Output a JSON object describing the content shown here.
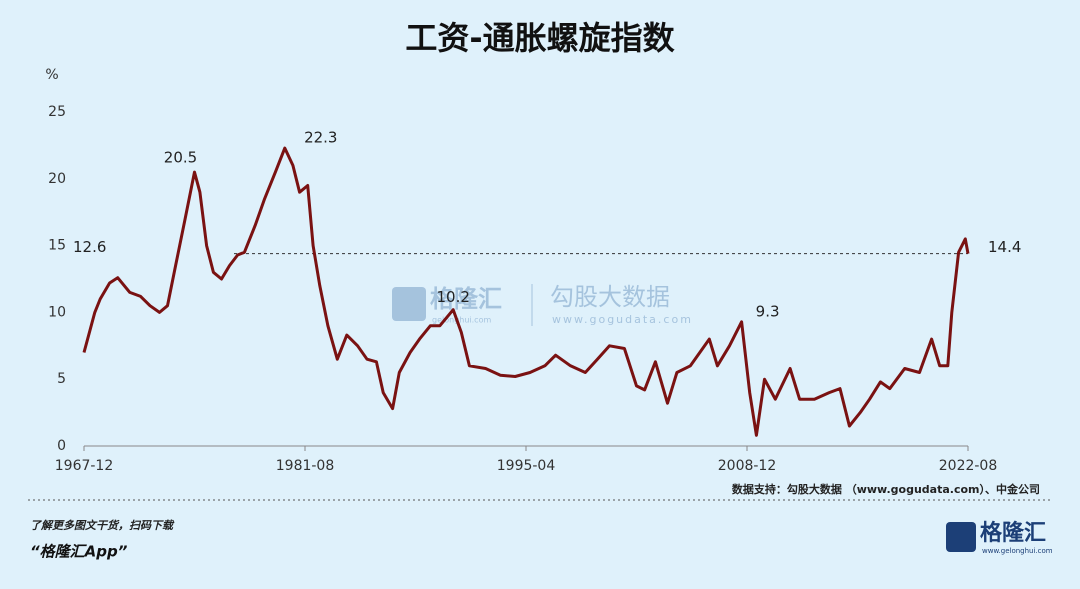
{
  "chart_data": {
    "type": "line",
    "title": "工资-通胀螺旋指数",
    "y_unit": "%",
    "x": [
      "1967-12",
      "1968-08",
      "1968-12",
      "1969-07",
      "1970-01",
      "1970-10",
      "1971-06",
      "1972-01",
      "1972-08",
      "1973-02",
      "1973-08",
      "1974-03",
      "1974-10",
      "1975-02",
      "1975-07",
      "1975-12",
      "1976-06",
      "1976-12",
      "1977-06",
      "1977-11",
      "1978-07",
      "1979-02",
      "1979-10",
      "1980-05",
      "1980-11",
      "1981-04",
      "1981-10",
      "1982-02",
      "1982-07",
      "1983-01",
      "1983-08",
      "1984-03",
      "1984-11",
      "1985-06",
      "1986-01",
      "1986-06",
      "1987-01",
      "1987-06",
      "1988-02",
      "1988-09",
      "1989-05",
      "1989-12",
      "1990-10",
      "1991-04",
      "1991-10",
      "1992-10",
      "1993-09",
      "1994-08",
      "1995-07",
      "1996-06",
      "1997-02",
      "1998-01",
      "1998-12",
      "1999-09",
      "2000-06",
      "2001-05",
      "2002-02",
      "2002-08",
      "2003-04",
      "2004-01",
      "2004-08",
      "2005-06",
      "2006-01",
      "2006-08",
      "2007-02",
      "2007-11",
      "2008-08",
      "2009-02",
      "2009-07",
      "2010-01",
      "2010-09",
      "2011-08",
      "2012-03",
      "2013-02",
      "2014-01",
      "2014-09",
      "2015-04",
      "2015-12",
      "2016-07",
      "2017-03",
      "2017-10",
      "2018-09",
      "2019-08",
      "2020-05",
      "2020-11",
      "2021-05",
      "2021-08",
      "2022-01",
      "2022-06",
      "2022-08"
    ],
    "series": [
      {
        "name": "工资-通胀螺旋指数",
        "color": "#7a1212",
        "values": [
          7,
          10,
          11,
          12.2,
          12.6,
          11.5,
          11.2,
          10.5,
          10,
          10.5,
          13.5,
          17,
          20.5,
          19,
          15,
          13,
          12.5,
          13.5,
          14.3,
          14.5,
          16.5,
          18.5,
          20.5,
          22.3,
          21,
          19,
          19.5,
          15,
          12,
          9,
          6.5,
          8.3,
          7.5,
          6.5,
          6.3,
          4,
          2.8,
          5.5,
          7,
          8,
          9,
          9,
          10.2,
          8.5,
          6,
          5.8,
          5.3,
          5.2,
          5.5,
          6,
          6.8,
          6,
          5.5,
          6.5,
          7.5,
          7.3,
          4.5,
          4.2,
          6.3,
          3.2,
          5.5,
          6,
          7,
          8,
          6,
          7.5,
          9.3,
          4,
          0.8,
          5,
          3.5,
          5.8,
          3.5,
          3.5,
          4,
          4.3,
          1.5,
          2.5,
          3.5,
          4.8,
          4.3,
          5.8,
          5.5,
          8,
          6,
          6,
          10,
          14.5,
          15.5,
          14.4
        ]
      }
    ],
    "annotations": [
      {
        "x": "1970-01",
        "value": 12.6
      },
      {
        "x": "1974-10",
        "value": 20.5
      },
      {
        "x": "1980-05",
        "value": 22.3
      },
      {
        "x": "1990-10",
        "value": 10.2
      },
      {
        "x": "2008-08",
        "value": 9.3
      }
    ],
    "reference_line": 14.4,
    "xlim": [
      "1967-12",
      "2022-08"
    ],
    "xticks": [
      "1967-12",
      "1981-08",
      "1995-04",
      "2008-12",
      "2022-08"
    ],
    "ylim": [
      0,
      25
    ],
    "yticks": [
      0,
      5,
      10,
      15,
      20,
      25
    ],
    "source": "数据支持：勾股大数据 （www.gogudata.com）、中金公司"
  },
  "watermark": {
    "brand": "格隆汇",
    "brand_site": "gelonghui.com",
    "partner": "勾股大数据",
    "partner_site": "www.gogudata.com"
  },
  "footer": {
    "promo": "了解更多图文干货，扫码下载",
    "app": "“格隆汇App”",
    "logo": "格隆汇",
    "logo_site": "www.gelonghui.com"
  }
}
